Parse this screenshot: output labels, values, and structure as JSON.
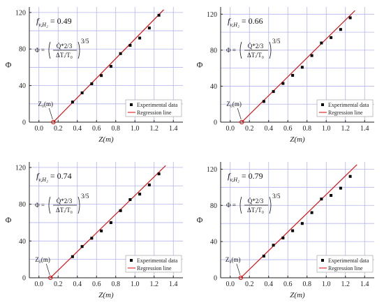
{
  "chart_data": [
    {
      "type": "scatter",
      "parameter": {
        "symbol": "f",
        "subscript": "v,H₂",
        "value": "0.49"
      },
      "formula": {
        "lhs": "Φ =",
        "numerator": "Q̇*2/3",
        "denominator": "ΔTᵢ/T₀",
        "exponent": "3/5"
      },
      "xlabel": "Z(m)",
      "ylabel": "Φ",
      "xlim": [
        -0.1,
        1.5
      ],
      "ylim": [
        0,
        126
      ],
      "xticks": [
        "0.0",
        "0.2",
        "0.4",
        "0.6",
        "0.8",
        "1.0",
        "1.2",
        "1.4"
      ],
      "yticks": [
        "0",
        "40",
        "80",
        "120"
      ],
      "z0_label": "Z₀(m)",
      "z0": 0.15,
      "series": [
        {
          "name": "Experimental data",
          "kind": "points",
          "x": [
            0.35,
            0.45,
            0.55,
            0.65,
            0.75,
            0.85,
            0.95,
            1.05,
            1.15,
            1.25
          ],
          "y": [
            22,
            32,
            42,
            51,
            61,
            75,
            84,
            92,
            103,
            117
          ]
        },
        {
          "name": "Regression line",
          "kind": "line",
          "color": "#e00000",
          "x": [
            0.15,
            1.3
          ],
          "y": [
            0,
            123
          ]
        }
      ]
    },
    {
      "type": "scatter",
      "parameter": {
        "symbol": "f",
        "subscript": "v,H₂",
        "value": "0.66"
      },
      "formula": {
        "lhs": "Φ =",
        "numerator": "Q̇*2/3",
        "denominator": "ΔTᵢ/T₀",
        "exponent": "3/5"
      },
      "xlabel": "Z(m)",
      "ylabel": "Φ",
      "xlim": [
        -0.1,
        1.5
      ],
      "ylim": [
        0,
        128
      ],
      "xticks": [
        "0.0",
        "0.2",
        "0.4",
        "0.6",
        "0.8",
        "1.0",
        "1.2",
        "1.4"
      ],
      "yticks": [
        "0",
        "40",
        "80",
        "120"
      ],
      "z0_label": "Z₀(m)",
      "z0": 0.12,
      "series": [
        {
          "name": "Experimental data",
          "kind": "points",
          "x": [
            0.35,
            0.45,
            0.55,
            0.65,
            0.75,
            0.85,
            0.95,
            1.05,
            1.15,
            1.25
          ],
          "y": [
            23,
            34,
            43,
            52,
            61,
            74,
            88,
            94,
            103,
            116
          ]
        },
        {
          "name": "Regression line",
          "kind": "line",
          "color": "#e00000",
          "x": [
            0.12,
            1.3
          ],
          "y": [
            0,
            124
          ]
        }
      ]
    },
    {
      "type": "scatter",
      "parameter": {
        "symbol": "f",
        "subscript": "v,H₂",
        "value": "0.74"
      },
      "formula": {
        "lhs": "Φ =",
        "numerator": "Q̇*2/3",
        "denominator": "ΔTᵢ/T₀",
        "exponent": "3/5"
      },
      "xlabel": "Z(m)",
      "ylabel": "Φ",
      "xlim": [
        -0.1,
        1.5
      ],
      "ylim": [
        0,
        126
      ],
      "xticks": [
        "0.0",
        "0.2",
        "0.4",
        "0.6",
        "0.8",
        "1.0",
        "1.2",
        "1.4"
      ],
      "yticks": [
        "0",
        "40",
        "80",
        "120"
      ],
      "z0_label": "Z₀(m)",
      "z0": 0.12,
      "series": [
        {
          "name": "Experimental data",
          "kind": "points",
          "x": [
            0.35,
            0.45,
            0.55,
            0.65,
            0.75,
            0.85,
            0.95,
            1.05,
            1.15,
            1.25
          ],
          "y": [
            23,
            34,
            43,
            51,
            60,
            73,
            85,
            91,
            101,
            113
          ]
        },
        {
          "name": "Regression line",
          "kind": "line",
          "color": "#e00000",
          "x": [
            0.12,
            1.32
          ],
          "y": [
            0,
            122
          ]
        }
      ]
    },
    {
      "type": "scatter",
      "parameter": {
        "symbol": "f",
        "subscript": "v,H₂",
        "value": "0.79"
      },
      "formula": {
        "lhs": "Φ =",
        "numerator": "Q̇*2/3",
        "denominator": "ΔTᵢ/T₀",
        "exponent": "3/5"
      },
      "xlabel": "Z(m)",
      "ylabel": "Φ",
      "xlim": [
        -0.1,
        1.5
      ],
      "ylim": [
        0,
        128
      ],
      "xticks": [
        "0.0",
        "0.2",
        "0.4",
        "0.6",
        "0.8",
        "1.0",
        "1.2",
        "1.4"
      ],
      "yticks": [
        "0",
        "40",
        "80",
        "120"
      ],
      "z0_label": "Z₀(m)",
      "z0": 0.11,
      "series": [
        {
          "name": "Experimental data",
          "kind": "points",
          "x": [
            0.35,
            0.45,
            0.55,
            0.65,
            0.75,
            0.85,
            0.95,
            1.05,
            1.15,
            1.25
          ],
          "y": [
            24,
            36,
            44,
            52,
            60,
            72,
            87,
            91,
            99,
            112
          ]
        },
        {
          "name": "Regression line",
          "kind": "line",
          "color": "#e00000",
          "x": [
            0.11,
            1.32
          ],
          "y": [
            0,
            125
          ]
        }
      ]
    }
  ]
}
